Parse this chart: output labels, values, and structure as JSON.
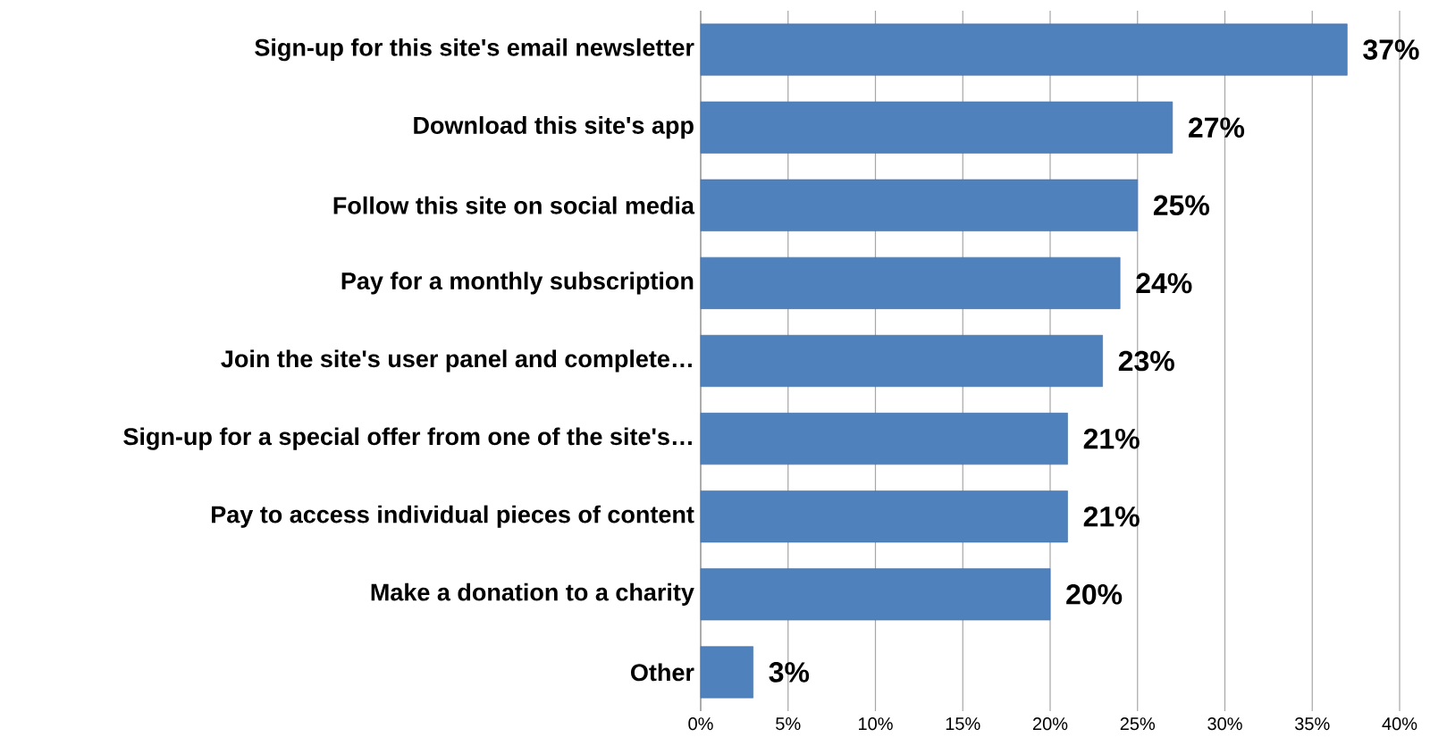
{
  "chart_data": {
    "type": "bar",
    "orientation": "horizontal",
    "categories": [
      "Sign-up for this site's email newsletter",
      "Download this site's app",
      "Follow this site on social media",
      "Pay for a monthly subscription",
      "Join the site's user panel and complete…",
      "Sign-up for a special offer from one of the site's…",
      "Pay to access individual pieces of content",
      "Make a donation to a charity",
      "Other"
    ],
    "values": [
      37,
      27,
      25,
      24,
      23,
      21,
      21,
      20,
      3
    ],
    "value_labels": [
      "37%",
      "27%",
      "25%",
      "24%",
      "23%",
      "21%",
      "21%",
      "20%",
      "3%"
    ],
    "color": "#4f81bd",
    "xlim": [
      0,
      40
    ],
    "xticks": [
      {
        "value": 0,
        "label": "0%"
      },
      {
        "value": 5,
        "label": "5%"
      },
      {
        "value": 10,
        "label": "10%"
      },
      {
        "value": 15,
        "label": "15%"
      },
      {
        "value": 20,
        "label": "20%"
      },
      {
        "value": 25,
        "label": "25%"
      },
      {
        "value": 30,
        "label": "30%"
      },
      {
        "value": 35,
        "label": "35%"
      },
      {
        "value": 40,
        "label": "40%"
      }
    ],
    "grid": "x"
  }
}
